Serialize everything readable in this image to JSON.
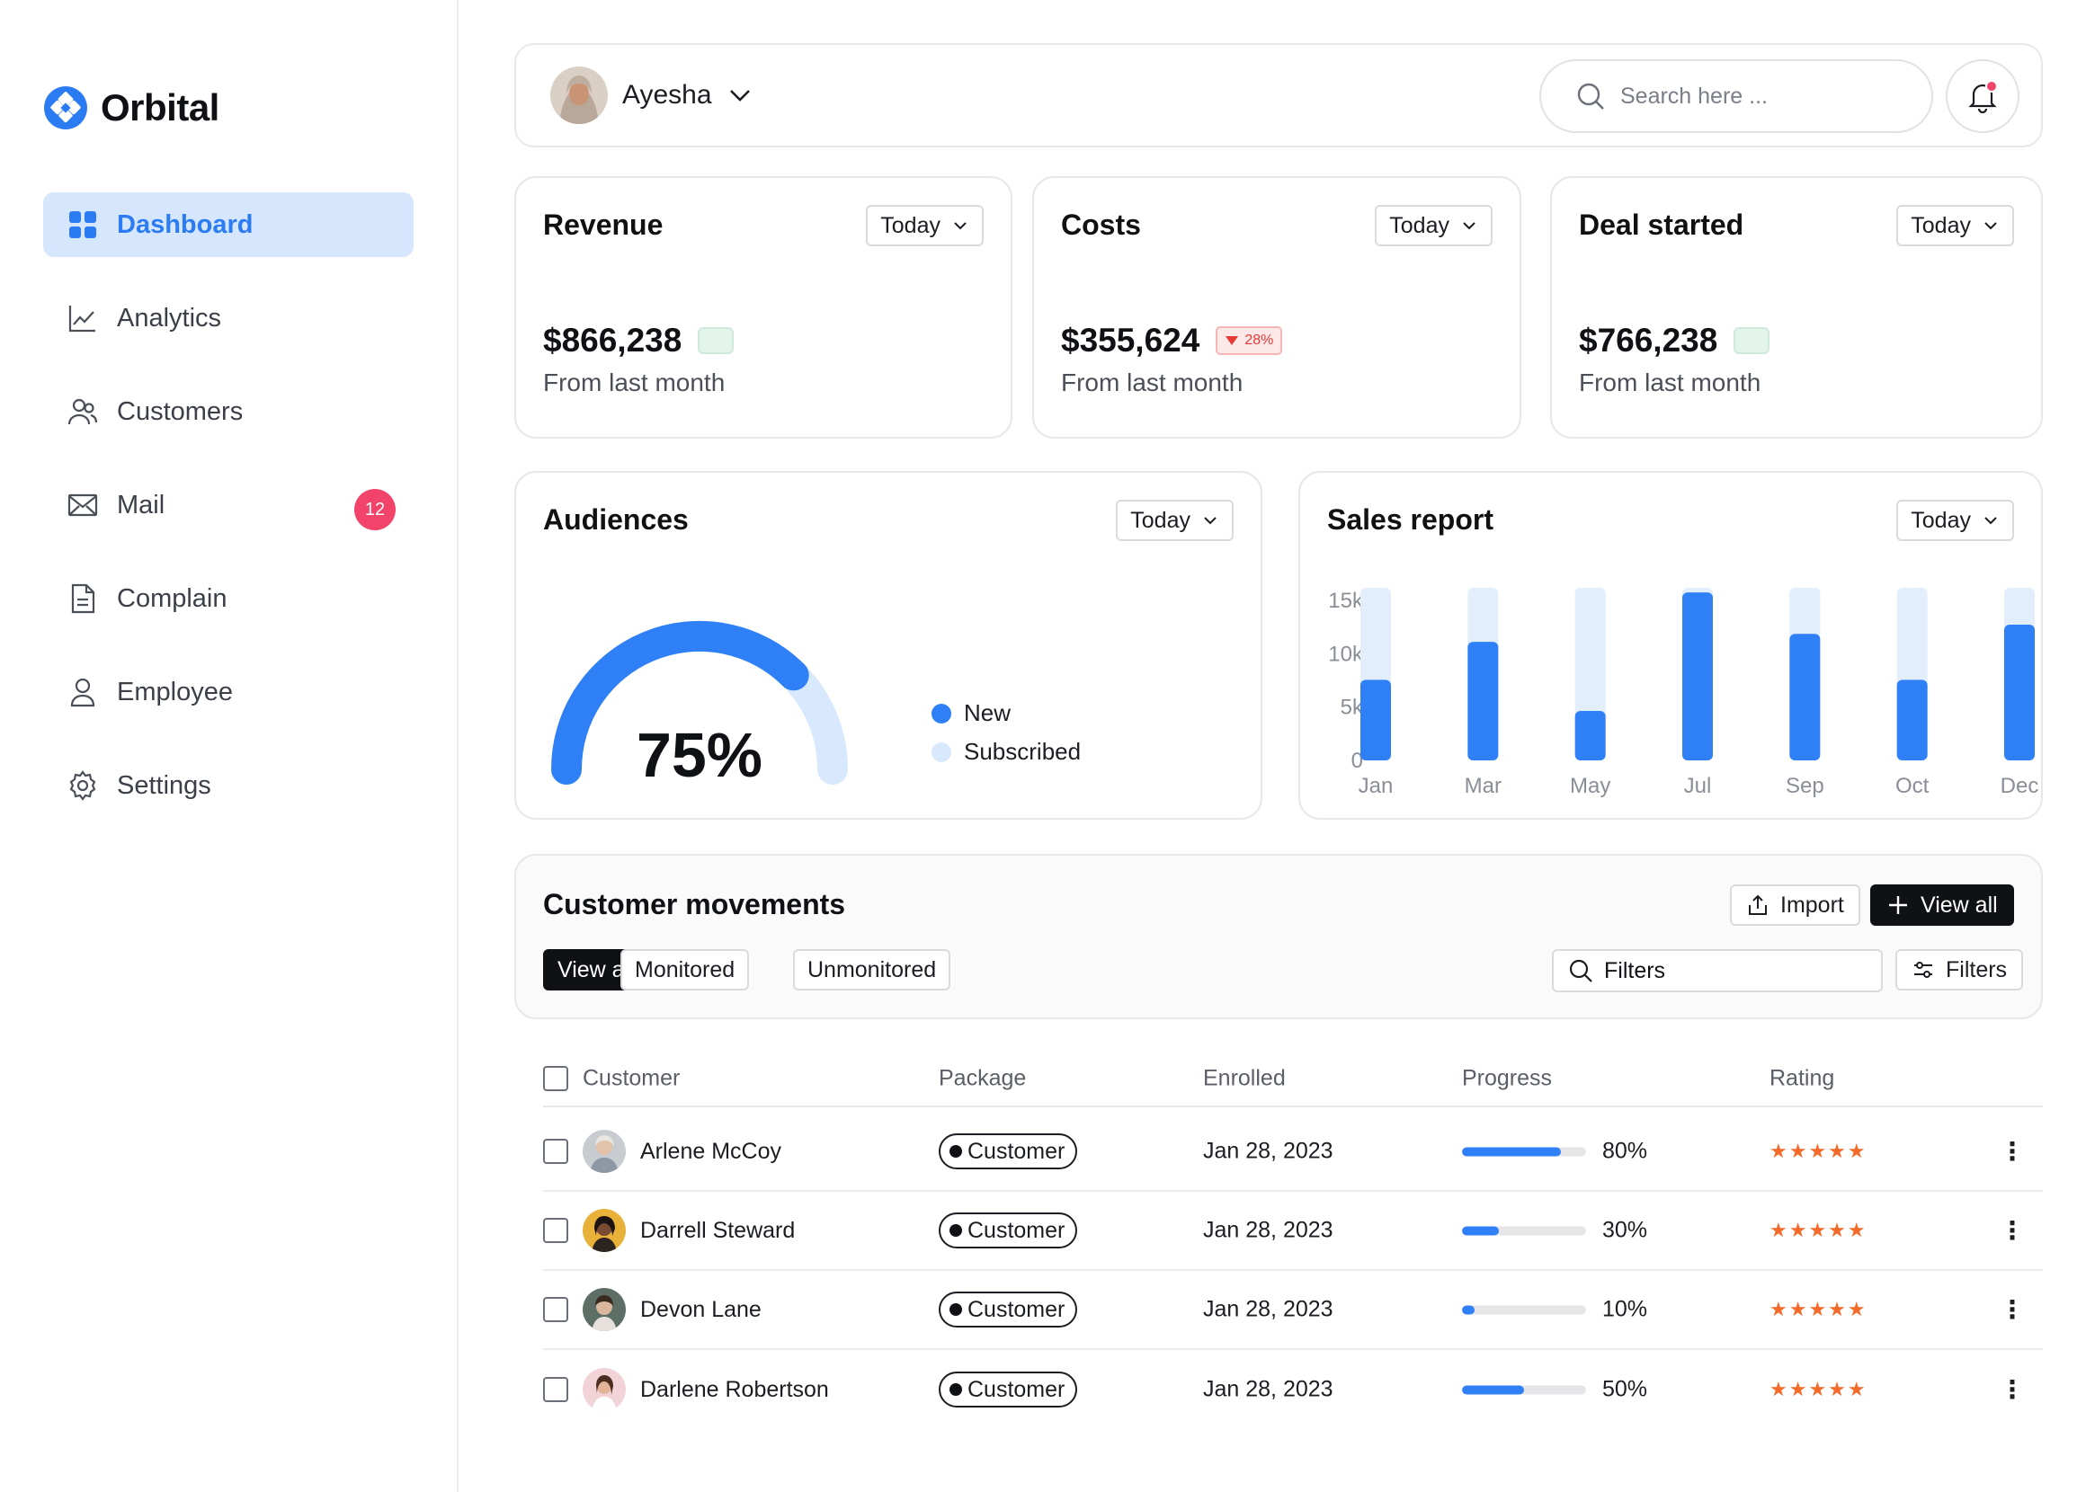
{
  "brand": {
    "name": "Orbital",
    "accent": "#2b7bf3"
  },
  "sidebar": {
    "items": [
      {
        "label": "Dashboard",
        "icon": "grid-icon",
        "active": true
      },
      {
        "label": "Analytics",
        "icon": "chart-line-icon"
      },
      {
        "label": "Customers",
        "icon": "users-icon"
      },
      {
        "label": "Mail",
        "icon": "mail-icon",
        "badge": "12"
      },
      {
        "label": "Complain",
        "icon": "document-icon"
      },
      {
        "label": "Employee",
        "icon": "user-icon"
      },
      {
        "label": "Settings",
        "icon": "gear-icon"
      }
    ]
  },
  "topbar": {
    "user_name": "Ayesha",
    "search_placeholder": "Search here ...",
    "notification_dot_color": "#f2446a"
  },
  "stats": [
    {
      "title": "Revenue",
      "period": "Today",
      "amount": "$866,238",
      "sub": "From last month"
    },
    {
      "title": "Costs",
      "period": "Today",
      "amount": "$355,624",
      "delta": "28%",
      "sub": "From last month"
    },
    {
      "title": "Deal started",
      "period": "Today",
      "amount": "$766,238",
      "sub": "From last month"
    }
  ],
  "audiences": {
    "title": "Audiences",
    "period": "Today",
    "percent": "75%",
    "fraction": 0.75,
    "legend": [
      {
        "label": "New",
        "color": "#2f80f6"
      },
      {
        "label": "Subscribed",
        "color": "#d8e8fd"
      }
    ]
  },
  "sales": {
    "title": "Sales report",
    "period": "Today",
    "chart_data": {
      "type": "bar",
      "categories": [
        "Jan",
        "Mar",
        "May",
        "Jul",
        "Sep",
        "Oct",
        "Dec"
      ],
      "values": [
        7000,
        10300,
        4300,
        14600,
        11000,
        7000,
        11800
      ],
      "ylim": [
        0,
        15000
      ],
      "yticks": [
        "15k",
        "10k",
        "5k",
        "0"
      ],
      "bar_color": "#2f80f6",
      "track_color": "#e3eefd"
    }
  },
  "movements": {
    "title": "Customer movements",
    "import_label": "Import",
    "view_all_label": "View all",
    "segments": [
      "View all",
      "Monitored",
      "Unmonitored"
    ],
    "filter_placeholder": "Filters",
    "filters_label": "Filters"
  },
  "table": {
    "headers": [
      "Customer",
      "Package",
      "Enrolled",
      "Progress",
      "Rating"
    ],
    "rows": [
      {
        "name": "Arlene McCoy",
        "package": "Customer",
        "enrolled": "Jan 28, 2023",
        "progress": 0.8,
        "progress_label": "80%",
        "stars": "★★★★★"
      },
      {
        "name": "Darrell Steward",
        "package": "Customer",
        "enrolled": "Jan 28, 2023",
        "progress": 0.3,
        "progress_label": "30%",
        "stars": "★★★★★"
      },
      {
        "name": "Devon Lane",
        "package": "Customer",
        "enrolled": "Jan 28, 2023",
        "progress": 0.1,
        "progress_label": "10%",
        "stars": "★★★★★"
      },
      {
        "name": "Darlene Robertson",
        "package": "Customer",
        "enrolled": "Jan 28, 2023",
        "progress": 0.5,
        "progress_label": "50%",
        "stars": "★★★★★"
      }
    ]
  }
}
